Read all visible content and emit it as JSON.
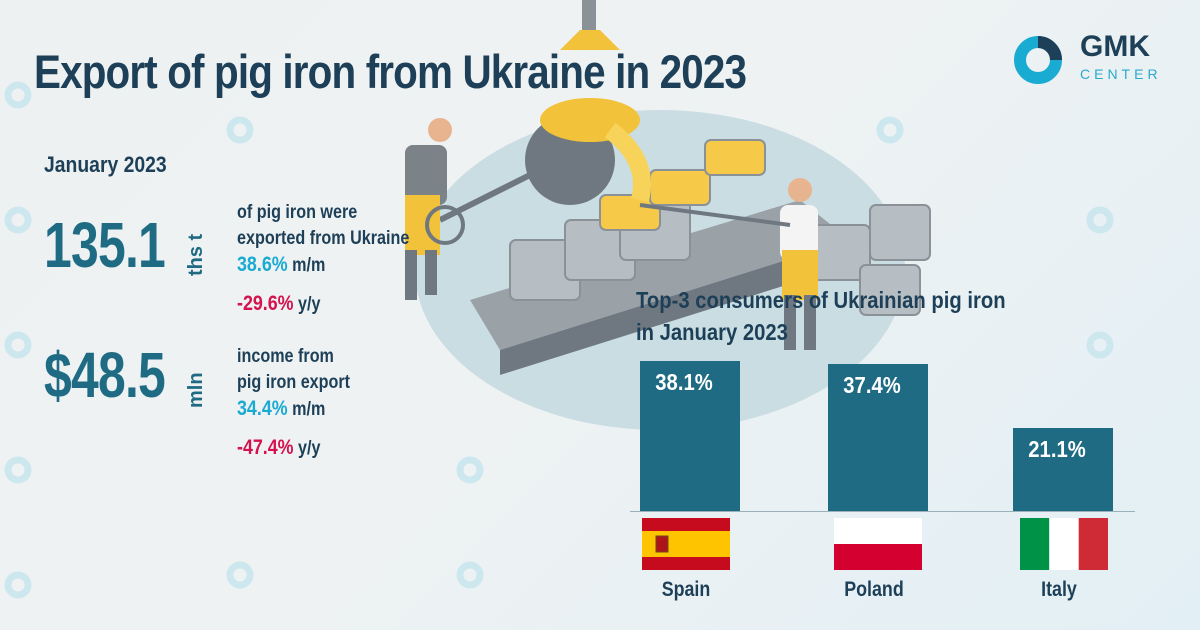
{
  "title": "Export of pig iron from Ukraine in 2023",
  "logo": {
    "name": "GMK",
    "sub": "CENTER"
  },
  "period": "January 2023",
  "volume": {
    "value": "135.1",
    "unit": "ths t",
    "desc_line1": "of pig iron were",
    "desc_line2": "exported from Ukraine",
    "mm_value": "38.6%",
    "mm_suffix": "m/m",
    "yy_value": "-29.6%",
    "yy_suffix": "y/y"
  },
  "income": {
    "value": "$48.5",
    "unit": "mln",
    "desc_line1": "income from",
    "desc_line2": "pig iron export",
    "mm_value": "34.4%",
    "mm_suffix": "m/m",
    "yy_value": "-47.4%",
    "yy_suffix": "y/y"
  },
  "colors": {
    "bar": "#1f6b84",
    "positive": "#1aabd2",
    "negative": "#d4124e",
    "title": "#1d3f57"
  },
  "chart_data": {
    "type": "bar",
    "title_line1": "Top-3 consumers of Ukrainian pig iron",
    "title_line2": "in January 2023",
    "categories": [
      "Spain",
      "Poland",
      "Italy"
    ],
    "values": [
      38.1,
      37.4,
      21.1
    ],
    "labels": [
      "38.1%",
      "37.4%",
      "21.1%"
    ],
    "unit": "%",
    "ylim": [
      0,
      40
    ],
    "grid": false,
    "flags": [
      "spain-flag",
      "poland-flag",
      "italy-flag"
    ]
  }
}
